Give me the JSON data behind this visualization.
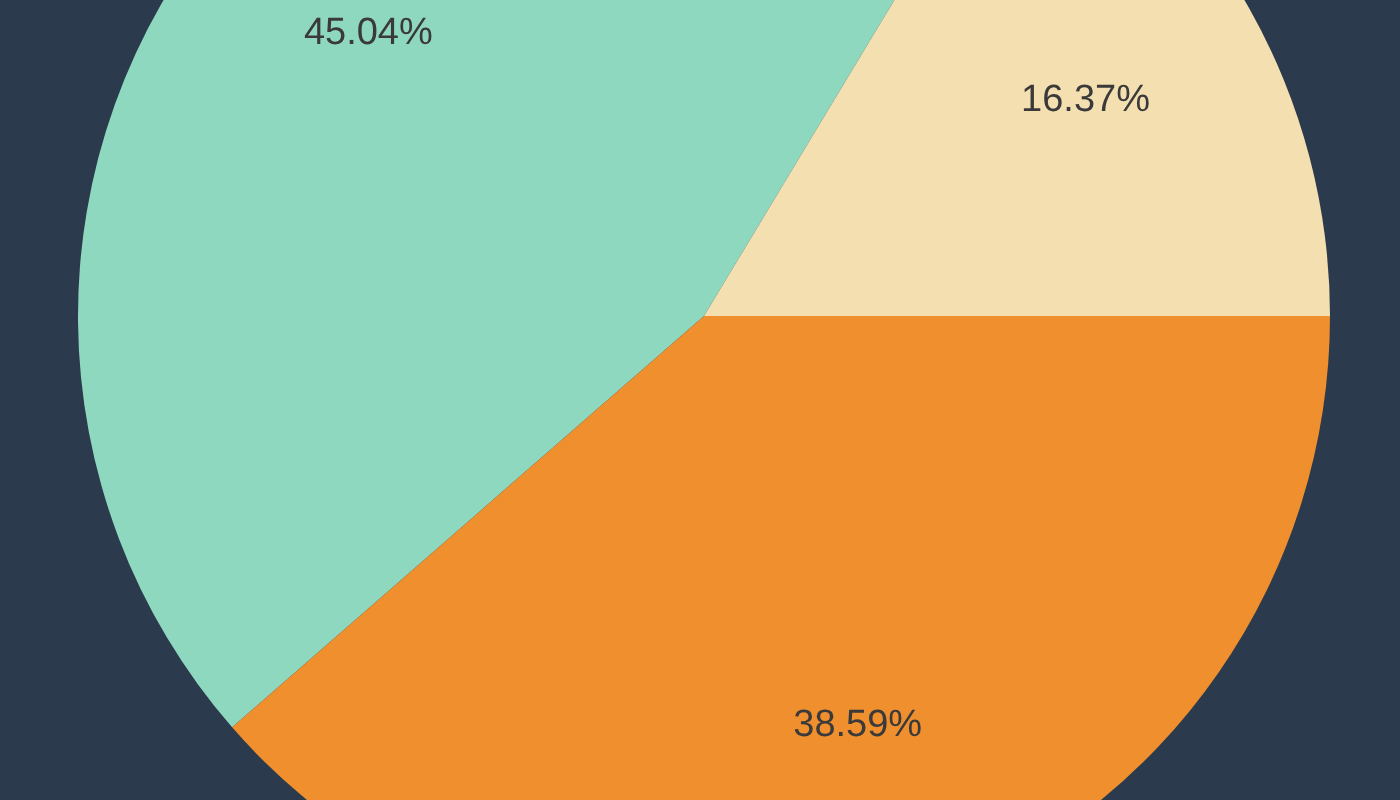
{
  "chart_data": {
    "type": "pie",
    "categories": [
      null,
      null,
      null
    ],
    "values": [
      45.04,
      16.37,
      38.59
    ],
    "colors": [
      "#8fd8c0",
      "#f3dfb0",
      "#ef8f2e"
    ],
    "value_labels": [
      "45.04%",
      "16.37%",
      "38.59%"
    ]
  }
}
